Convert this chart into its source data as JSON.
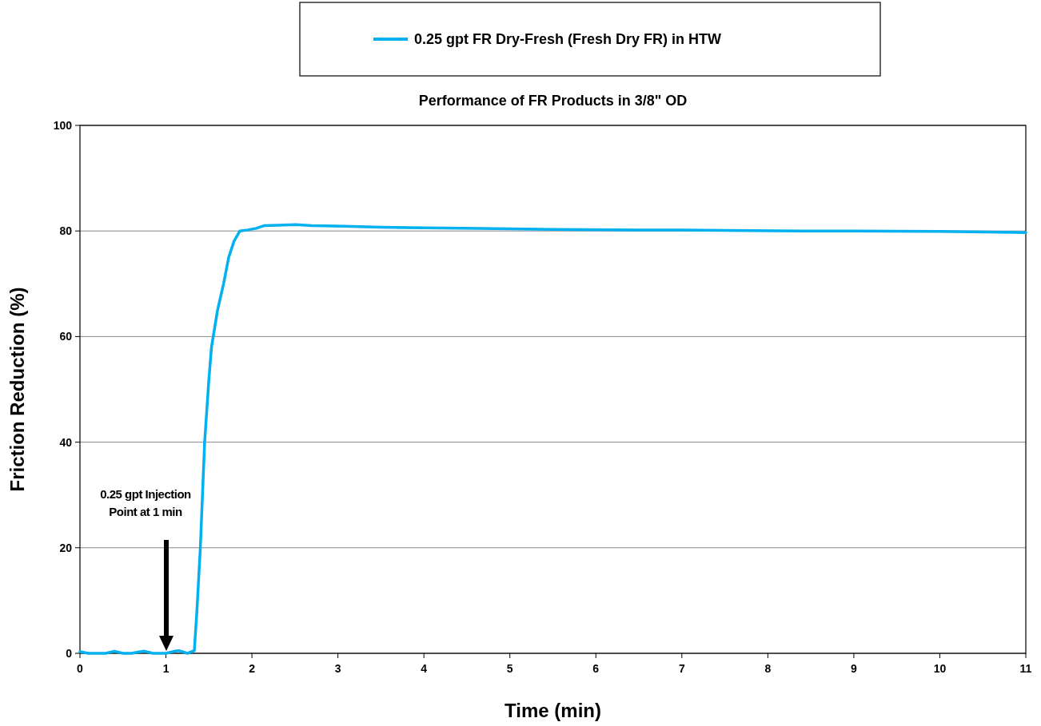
{
  "chart_data": {
    "type": "line",
    "title": "Performance of FR Products in 3/8\" OD",
    "xlabel": "Time (min)",
    "ylabel": "Friction Reduction (%)",
    "xlim": [
      0,
      11
    ],
    "xticks": [
      0,
      1,
      2,
      3,
      4,
      5,
      6,
      7,
      8,
      9,
      10,
      11
    ],
    "ylim": [
      0,
      100
    ],
    "yticks": [
      0,
      20,
      40,
      60,
      80,
      100
    ],
    "grid": "y",
    "legend": "top",
    "marker": "none",
    "line_style": "solid",
    "annotations": [
      "0.25 gpt Injection Point at 1 min"
    ],
    "series": [
      {
        "name": "0.25 gpt FR Dry-Fresh (Fresh Dry FR) in HTW",
        "color": "#00b0f0",
        "x": [
          0,
          0.1,
          0.2,
          0.3,
          0.4,
          0.5,
          0.6,
          0.7,
          0.75,
          0.85,
          1,
          1.1,
          1.15,
          1.25,
          1.33,
          1.36,
          1.4,
          1.45,
          1.5,
          1.53,
          1.6,
          1.67,
          1.73,
          1.79,
          1.86,
          1.95,
          2.05,
          2.14,
          2.3,
          2.51,
          2.7,
          3.07,
          3.5,
          4,
          4.65,
          5,
          5.5,
          6.5,
          7,
          7.5,
          8.4,
          9,
          10,
          11
        ],
        "values": [
          0.3,
          0,
          0,
          0,
          0.4,
          0,
          0,
          0.3,
          0.4,
          0,
          0,
          0.4,
          0.5,
          0,
          0.5,
          8,
          20,
          40,
          52,
          58,
          65,
          70,
          75,
          78,
          80,
          80.2,
          80.5,
          81,
          81.1,
          81.2,
          81,
          80.9,
          80.7,
          80.6,
          80.5,
          80.4,
          80.3,
          80.2,
          80.2,
          80.1,
          80,
          80,
          79.9,
          79.7
        ]
      }
    ]
  }
}
